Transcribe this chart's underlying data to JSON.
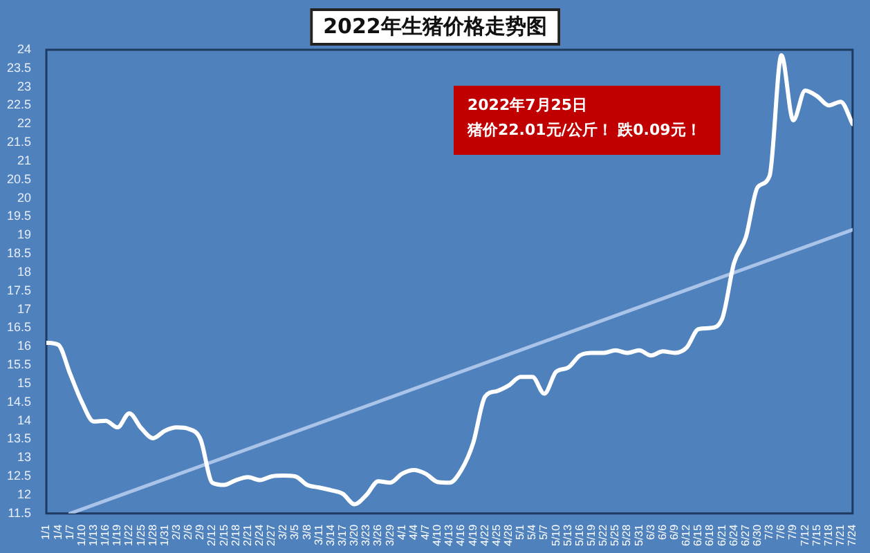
{
  "chart_data": {
    "type": "line",
    "title": "2022年生猪价格走势图",
    "categories": [
      "1/1",
      "1/4",
      "1/7",
      "1/10",
      "1/13",
      "1/16",
      "1/19",
      "1/22",
      "1/25",
      "1/28",
      "1/31",
      "2/3",
      "2/6",
      "2/9",
      "2/12",
      "2/15",
      "2/18",
      "2/21",
      "2/24",
      "2/27",
      "3/2",
      "3/5",
      "3/8",
      "3/11",
      "3/14",
      "3/17",
      "3/20",
      "3/23",
      "3/26",
      "3/29",
      "4/1",
      "4/4",
      "4/7",
      "4/10",
      "4/13",
      "4/16",
      "4/19",
      "4/22",
      "4/25",
      "4/28",
      "5/1",
      "5/4",
      "5/7",
      "5/10",
      "5/13",
      "5/16",
      "5/19",
      "5/22",
      "5/25",
      "5/28",
      "5/31",
      "6/3",
      "6/6",
      "6/9",
      "6/12",
      "6/15",
      "6/18",
      "6/21",
      "6/24",
      "6/27",
      "6/30",
      "7/3",
      "7/6",
      "7/9",
      "7/12",
      "7/15",
      "7/18",
      "7/21",
      "7/24"
    ],
    "series": [
      {
        "color": "#ffffff",
        "values": [
          16.1,
          16.05,
          15.27,
          14.5,
          13.98,
          14.0,
          13.82,
          14.2,
          13.8,
          13.53,
          13.73,
          13.82,
          13.78,
          13.5,
          12.33,
          12.27,
          12.4,
          12.48,
          12.4,
          12.5,
          12.52,
          12.5,
          12.27,
          12.2,
          12.13,
          12.03,
          11.75,
          12.0,
          12.37,
          12.33,
          12.57,
          12.67,
          12.57,
          12.35,
          12.33,
          12.67,
          13.4,
          14.65,
          14.8,
          14.95,
          15.18,
          15.18,
          14.73,
          15.32,
          15.43,
          15.76,
          15.83,
          15.83,
          15.9,
          15.83,
          15.9,
          15.76,
          15.87,
          15.83,
          15.97,
          16.47,
          16.5,
          16.75,
          18.25,
          18.95,
          20.3,
          20.6,
          23.85,
          22.1,
          22.9,
          22.75,
          22.5,
          22.6,
          22.0
        ]
      },
      {
        "type": "line",
        "color": "#a9c4e8",
        "x": [
          "1/7",
          "7/24"
        ],
        "values": [
          11.5,
          19.15
        ]
      }
    ],
    "ylim": [
      11.5,
      24
    ],
    "yticks": [
      11.5,
      12,
      12.5,
      13,
      13.5,
      14,
      14.5,
      15,
      15.5,
      16,
      16.5,
      17,
      17.5,
      18,
      18.5,
      19,
      19.5,
      20,
      20.5,
      21,
      21.5,
      22,
      22.5,
      23,
      23.5,
      24
    ],
    "grid": false,
    "legend": false,
    "marker": "none",
    "line_style": "solid",
    "annotations": [
      "2022年7月25日",
      "猪价22.01元/公斤！ 跌0.09元！"
    ]
  }
}
